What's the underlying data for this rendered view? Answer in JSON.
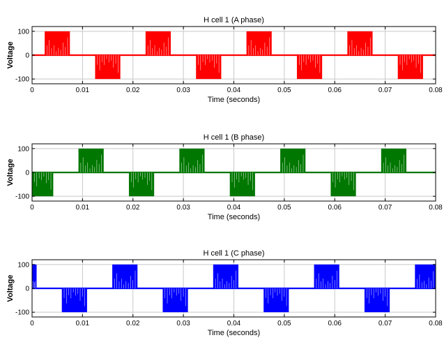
{
  "chart_data": [
    {
      "type": "line",
      "title": "H cell 1 (A phase)",
      "xlabel": "Time (seconds)",
      "ylabel": "Voltage",
      "xlim": [
        0,
        0.08
      ],
      "ylim": [
        -120,
        120
      ],
      "xticks": [
        "0",
        "0.01",
        "0.02",
        "0.03",
        "0.04",
        "0.05",
        "0.06",
        "0.07",
        "0.08"
      ],
      "yticks": [
        "100",
        "0",
        "-100"
      ],
      "grid": true,
      "color": "#ff0000",
      "series": [
        {
          "pulse_blocks": [
            {
              "start": 0.0025,
              "end": 0.0075,
              "level": 100
            },
            {
              "start": 0.0125,
              "end": 0.0175,
              "level": -100
            },
            {
              "start": 0.0225,
              "end": 0.0275,
              "level": 100
            },
            {
              "start": 0.0325,
              "end": 0.0375,
              "level": -100
            },
            {
              "start": 0.0425,
              "end": 0.0475,
              "level": 100
            },
            {
              "start": 0.0525,
              "end": 0.0575,
              "level": -100
            },
            {
              "start": 0.0625,
              "end": 0.0675,
              "level": 100
            },
            {
              "start": 0.0725,
              "end": 0.0775,
              "level": -100
            }
          ]
        }
      ]
    },
    {
      "type": "line",
      "title": "H cell 1 (B phase)",
      "xlabel": "Time (seconds)",
      "ylabel": "Voltage",
      "xlim": [
        0,
        0.08
      ],
      "ylim": [
        -120,
        120
      ],
      "xticks": [
        "0",
        "0.01",
        "0.02",
        "0.03",
        "0.04",
        "0.05",
        "0.06",
        "0.07",
        "0.08"
      ],
      "yticks": [
        "100",
        "0",
        "-100"
      ],
      "grid": true,
      "color": "#007700",
      "series": [
        {
          "pulse_blocks": [
            {
              "start": 0.0,
              "end": 0.0042,
              "level": -100
            },
            {
              "start": 0.0092,
              "end": 0.0142,
              "level": 100
            },
            {
              "start": 0.0192,
              "end": 0.0242,
              "level": -100
            },
            {
              "start": 0.0292,
              "end": 0.0342,
              "level": 100
            },
            {
              "start": 0.0392,
              "end": 0.0442,
              "level": -100
            },
            {
              "start": 0.0492,
              "end": 0.0542,
              "level": 100
            },
            {
              "start": 0.0592,
              "end": 0.0642,
              "level": -100
            },
            {
              "start": 0.0692,
              "end": 0.0742,
              "level": 100
            }
          ]
        }
      ]
    },
    {
      "type": "line",
      "title": "H cell 1 (C phase)",
      "xlabel": "Time (seconds)",
      "ylabel": "Voltage",
      "xlim": [
        0,
        0.08
      ],
      "ylim": [
        -120,
        120
      ],
      "xticks": [
        "0",
        "0.01",
        "0.02",
        "0.03",
        "0.04",
        "0.05",
        "0.06",
        "0.07",
        "0.08"
      ],
      "yticks": [
        "100",
        "0",
        "-100"
      ],
      "grid": true,
      "color": "#0000ff",
      "series": [
        {
          "pulse_blocks": [
            {
              "start": 0.0,
              "end": 0.0009,
              "level": 100
            },
            {
              "start": 0.0059,
              "end": 0.0109,
              "level": -100
            },
            {
              "start": 0.0159,
              "end": 0.0209,
              "level": 100
            },
            {
              "start": 0.0259,
              "end": 0.0309,
              "level": -100
            },
            {
              "start": 0.0359,
              "end": 0.0409,
              "level": 100
            },
            {
              "start": 0.0459,
              "end": 0.0509,
              "level": -100
            },
            {
              "start": 0.0559,
              "end": 0.0609,
              "level": 100
            },
            {
              "start": 0.0659,
              "end": 0.0709,
              "level": -100
            },
            {
              "start": 0.0759,
              "end": 0.08,
              "level": 100
            }
          ]
        }
      ]
    }
  ]
}
